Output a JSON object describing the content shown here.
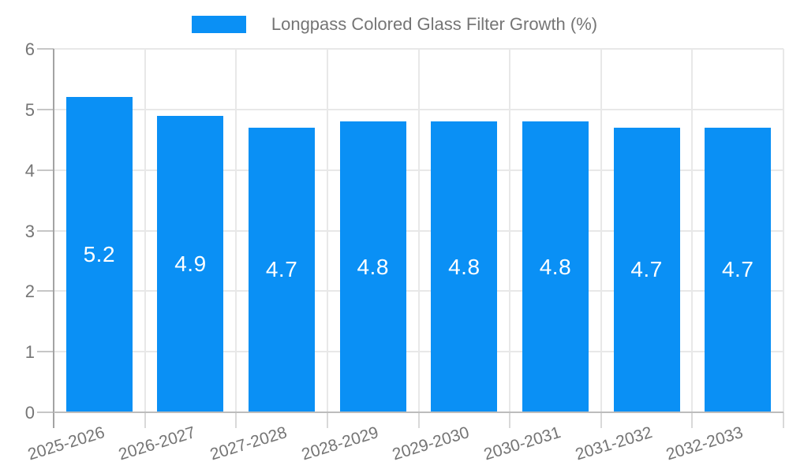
{
  "legend": {
    "label": "Longpass Colored Glass Filter Growth (%)"
  },
  "chart_data": {
    "type": "bar",
    "title": "",
    "series_name": "Longpass Colored Glass Filter Growth (%)",
    "categories": [
      "2025-2026",
      "2026-2027",
      "2027-2028",
      "2028-2029",
      "2029-2030",
      "2030-2031",
      "2031-2032",
      "2032-2033"
    ],
    "values": [
      5.2,
      4.9,
      4.7,
      4.8,
      4.8,
      4.8,
      4.7,
      4.7
    ],
    "value_labels": [
      "5.2",
      "4.9",
      "4.7",
      "4.8",
      "4.8",
      "4.8",
      "4.7",
      "4.7"
    ],
    "xlabel": "",
    "ylabel": "",
    "ylim": [
      0,
      6
    ],
    "yticks": [
      0,
      1,
      2,
      3,
      4,
      5,
      6
    ],
    "grid": true,
    "legend_position": "top",
    "colors": {
      "bar": "#0a90f5",
      "value_label": "#ffffff",
      "axis_text": "#757575",
      "gridline": "#e8e8e8"
    }
  }
}
